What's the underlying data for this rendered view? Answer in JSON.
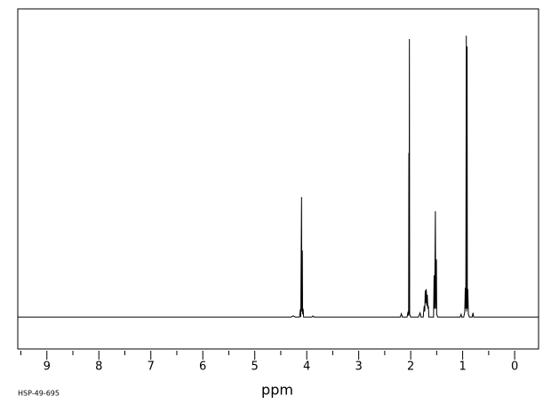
{
  "chart_data": {
    "type": "line",
    "x_label": "ppm",
    "footnote": "HSP-49-695",
    "color": "#000000",
    "xlim": [
      9.56,
      -0.46
    ],
    "ylim": [
      -11.4,
      110.2
    ],
    "xticks": [
      9,
      8,
      7,
      6,
      5,
      4,
      3,
      2,
      1,
      0
    ],
    "xminorticks": [
      9.5,
      8.5,
      7.5,
      6.5,
      5.5,
      4.5,
      3.5,
      2.5,
      1.5,
      0.5
    ],
    "x": [
      9.56,
      4.3,
      4.26,
      4.22,
      4.14,
      4.12,
      4.115,
      4.1,
      4.095,
      4.085,
      4.08,
      4.07,
      4.06,
      3.9,
      3.88,
      3.86,
      2.2,
      2.18,
      2.16,
      2.07,
      2.05,
      2.04,
      2.035,
      2.03,
      2.025,
      2.02,
      2.0,
      1.85,
      1.82,
      1.8,
      1.76,
      1.74,
      1.73,
      1.72,
      1.71,
      1.7,
      1.69,
      1.68,
      1.67,
      1.66,
      1.65,
      1.56,
      1.55,
      1.54,
      1.525,
      1.52,
      1.505,
      1.5,
      1.48,
      1.35,
      1.05,
      1.03,
      1.02,
      0.98,
      0.96,
      0.95,
      0.94,
      0.93,
      0.925,
      0.915,
      0.91,
      0.9,
      0.89,
      0.87,
      0.82,
      0.8,
      0.79,
      -0.46
    ],
    "values": [
      0,
      0,
      0.4,
      0,
      0,
      3,
      0,
      42.9,
      2,
      23.8,
      1,
      3,
      0,
      0,
      0.4,
      0,
      0,
      1.2,
      0,
      0,
      2,
      0.5,
      58.7,
      1,
      99.4,
      1,
      0,
      0,
      1.5,
      0,
      0,
      4,
      2,
      9.5,
      5,
      10,
      4,
      8,
      3,
      4,
      0,
      0,
      14.9,
      3,
      37.8,
      3,
      20.6,
      1,
      0,
      0,
      0,
      1,
      0,
      0,
      2,
      10.5,
      3,
      100.6,
      2,
      96.8,
      3,
      10,
      1,
      0,
      0,
      1.5,
      0,
      0
    ]
  }
}
